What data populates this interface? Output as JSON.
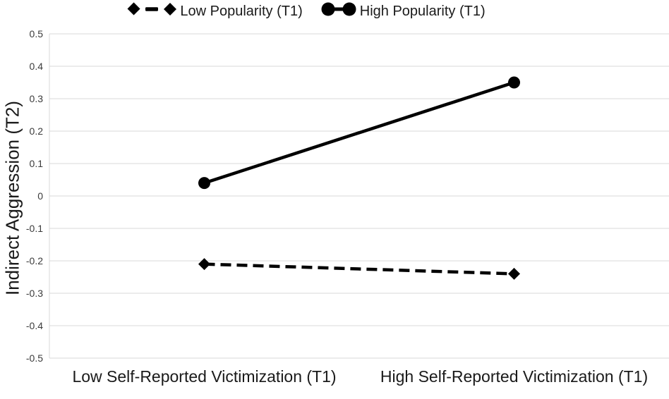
{
  "chart_data": {
    "type": "line",
    "categories": [
      "Low Self-Reported Victimization (T1)",
      "High Self-Reported Victimization (T1)"
    ],
    "series": [
      {
        "name": "Low Popularity (T1)",
        "marker": "diamond",
        "line_style": "dashed",
        "values": [
          -0.21,
          -0.24
        ]
      },
      {
        "name": "High Popularity (T1)",
        "marker": "circle",
        "line_style": "solid",
        "values": [
          0.04,
          0.35
        ]
      }
    ],
    "xlabel": "",
    "ylabel": "Indirect Aggression (T2)",
    "ylim": [
      -0.5,
      0.5
    ],
    "yticks": [
      "0.5",
      "0.4",
      "0.3",
      "0.2",
      "0.1",
      "0",
      "-0.1",
      "-0.2",
      "-0.3",
      "-0.4",
      "-0.5"
    ],
    "grid": true,
    "legend_position": "top",
    "colors": {
      "series_line": "#000000",
      "gridline": "#d9d9d9",
      "axis_line": "#d9d9d9",
      "tick_label_text": "#3b3b3b",
      "label_text": "#1a1a1a"
    }
  }
}
